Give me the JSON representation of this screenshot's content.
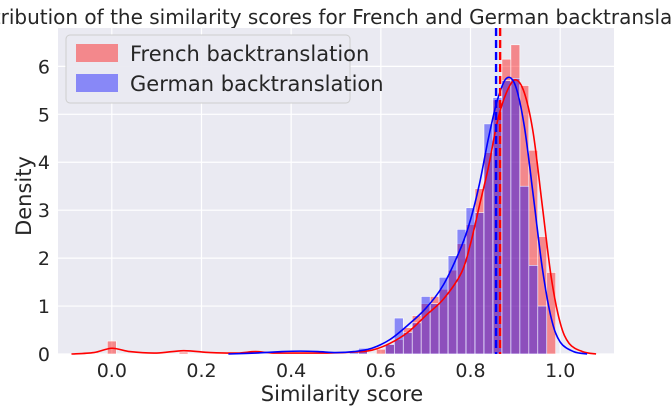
{
  "chart_data": {
    "type": "histogram",
    "title": "Distribution of the similarity scores for French and German backtranslation",
    "xlabel": "Similarity score",
    "ylabel": "Density",
    "xlim": [
      -0.12,
      1.12
    ],
    "ylim": [
      0,
      6.8
    ],
    "xticks": [
      0.0,
      0.2,
      0.4,
      0.6,
      0.8,
      1.0
    ],
    "xtick_labels": [
      "0.0",
      "0.2",
      "0.4",
      "0.6",
      "0.8",
      "1.0"
    ],
    "yticks": [
      0,
      1,
      2,
      3,
      4,
      5,
      6
    ],
    "ytick_labels": [
      "0",
      "1",
      "2",
      "3",
      "4",
      "5",
      "6"
    ],
    "grid": true,
    "legend_position": "top-left",
    "bin_width": 0.02,
    "series": [
      {
        "name": "French backtranslation",
        "color": "#ff0000",
        "bars": [
          {
            "x": 0.0,
            "h": 0.27
          },
          {
            "x": 0.16,
            "h": 0.04
          },
          {
            "x": 0.32,
            "h": 0.04
          },
          {
            "x": 0.56,
            "h": 0.06
          },
          {
            "x": 0.6,
            "h": 0.1
          },
          {
            "x": 0.62,
            "h": 0.2
          },
          {
            "x": 0.64,
            "h": 0.3
          },
          {
            "x": 0.66,
            "h": 0.55
          },
          {
            "x": 0.68,
            "h": 0.8
          },
          {
            "x": 0.7,
            "h": 1.05
          },
          {
            "x": 0.72,
            "h": 1.2
          },
          {
            "x": 0.74,
            "h": 1.35
          },
          {
            "x": 0.76,
            "h": 1.75
          },
          {
            "x": 0.78,
            "h": 2.3
          },
          {
            "x": 0.8,
            "h": 2.7
          },
          {
            "x": 0.82,
            "h": 3.45
          },
          {
            "x": 0.84,
            "h": 4.2
          },
          {
            "x": 0.86,
            "h": 5.3
          },
          {
            "x": 0.88,
            "h": 6.15
          },
          {
            "x": 0.9,
            "h": 6.45
          },
          {
            "x": 0.92,
            "h": 5.6
          },
          {
            "x": 0.94,
            "h": 4.25
          },
          {
            "x": 0.96,
            "h": 2.45
          },
          {
            "x": 0.98,
            "h": 1.7
          }
        ],
        "kde": [
          [
            -0.09,
            0.0
          ],
          [
            -0.04,
            0.03
          ],
          [
            0.0,
            0.12
          ],
          [
            0.04,
            0.05
          ],
          [
            0.1,
            0.02
          ],
          [
            0.16,
            0.07
          ],
          [
            0.22,
            0.03
          ],
          [
            0.28,
            0.02
          ],
          [
            0.32,
            0.05
          ],
          [
            0.36,
            0.02
          ],
          [
            0.42,
            0.02
          ],
          [
            0.48,
            0.02
          ],
          [
            0.54,
            0.04
          ],
          [
            0.58,
            0.08
          ],
          [
            0.62,
            0.22
          ],
          [
            0.66,
            0.45
          ],
          [
            0.7,
            0.8
          ],
          [
            0.74,
            1.15
          ],
          [
            0.78,
            1.7
          ],
          [
            0.8,
            2.3
          ],
          [
            0.82,
            3.1
          ],
          [
            0.84,
            3.9
          ],
          [
            0.86,
            4.85
          ],
          [
            0.88,
            5.45
          ],
          [
            0.9,
            5.72
          ],
          [
            0.92,
            5.45
          ],
          [
            0.94,
            4.6
          ],
          [
            0.96,
            3.1
          ],
          [
            0.98,
            1.6
          ],
          [
            1.0,
            0.65
          ],
          [
            1.02,
            0.22
          ],
          [
            1.05,
            0.05
          ],
          [
            1.08,
            0.0
          ]
        ],
        "mean": 0.866
      },
      {
        "name": "German backtranslation",
        "color": "#0000ff",
        "bars": [
          {
            "x": 0.54,
            "h": 0.05
          },
          {
            "x": 0.56,
            "h": 0.12
          },
          {
            "x": 0.62,
            "h": 0.2
          },
          {
            "x": 0.64,
            "h": 0.75
          },
          {
            "x": 0.66,
            "h": 0.45
          },
          {
            "x": 0.68,
            "h": 0.65
          },
          {
            "x": 0.7,
            "h": 1.2
          },
          {
            "x": 0.72,
            "h": 1.05
          },
          {
            "x": 0.74,
            "h": 1.6
          },
          {
            "x": 0.76,
            "h": 2.05
          },
          {
            "x": 0.78,
            "h": 2.6
          },
          {
            "x": 0.8,
            "h": 3.05
          },
          {
            "x": 0.82,
            "h": 2.95
          },
          {
            "x": 0.84,
            "h": 4.8
          },
          {
            "x": 0.86,
            "h": 5.35
          },
          {
            "x": 0.88,
            "h": 5.7
          },
          {
            "x": 0.9,
            "h": 5.75
          },
          {
            "x": 0.92,
            "h": 3.5
          },
          {
            "x": 0.94,
            "h": 1.85
          },
          {
            "x": 0.96,
            "h": 1.0
          }
        ],
        "kde": [
          [
            0.26,
            0.0
          ],
          [
            0.32,
            0.02
          ],
          [
            0.38,
            0.05
          ],
          [
            0.42,
            0.06
          ],
          [
            0.46,
            0.05
          ],
          [
            0.5,
            0.03
          ],
          [
            0.54,
            0.05
          ],
          [
            0.58,
            0.12
          ],
          [
            0.62,
            0.3
          ],
          [
            0.66,
            0.6
          ],
          [
            0.7,
            0.95
          ],
          [
            0.74,
            1.45
          ],
          [
            0.78,
            2.25
          ],
          [
            0.8,
            2.8
          ],
          [
            0.82,
            3.55
          ],
          [
            0.84,
            4.5
          ],
          [
            0.86,
            5.3
          ],
          [
            0.88,
            5.75
          ],
          [
            0.9,
            5.6
          ],
          [
            0.92,
            4.75
          ],
          [
            0.94,
            3.3
          ],
          [
            0.96,
            1.8
          ],
          [
            0.98,
            0.75
          ],
          [
            1.0,
            0.25
          ],
          [
            1.03,
            0.05
          ],
          [
            1.06,
            0.0
          ]
        ],
        "mean": 0.857
      }
    ]
  }
}
